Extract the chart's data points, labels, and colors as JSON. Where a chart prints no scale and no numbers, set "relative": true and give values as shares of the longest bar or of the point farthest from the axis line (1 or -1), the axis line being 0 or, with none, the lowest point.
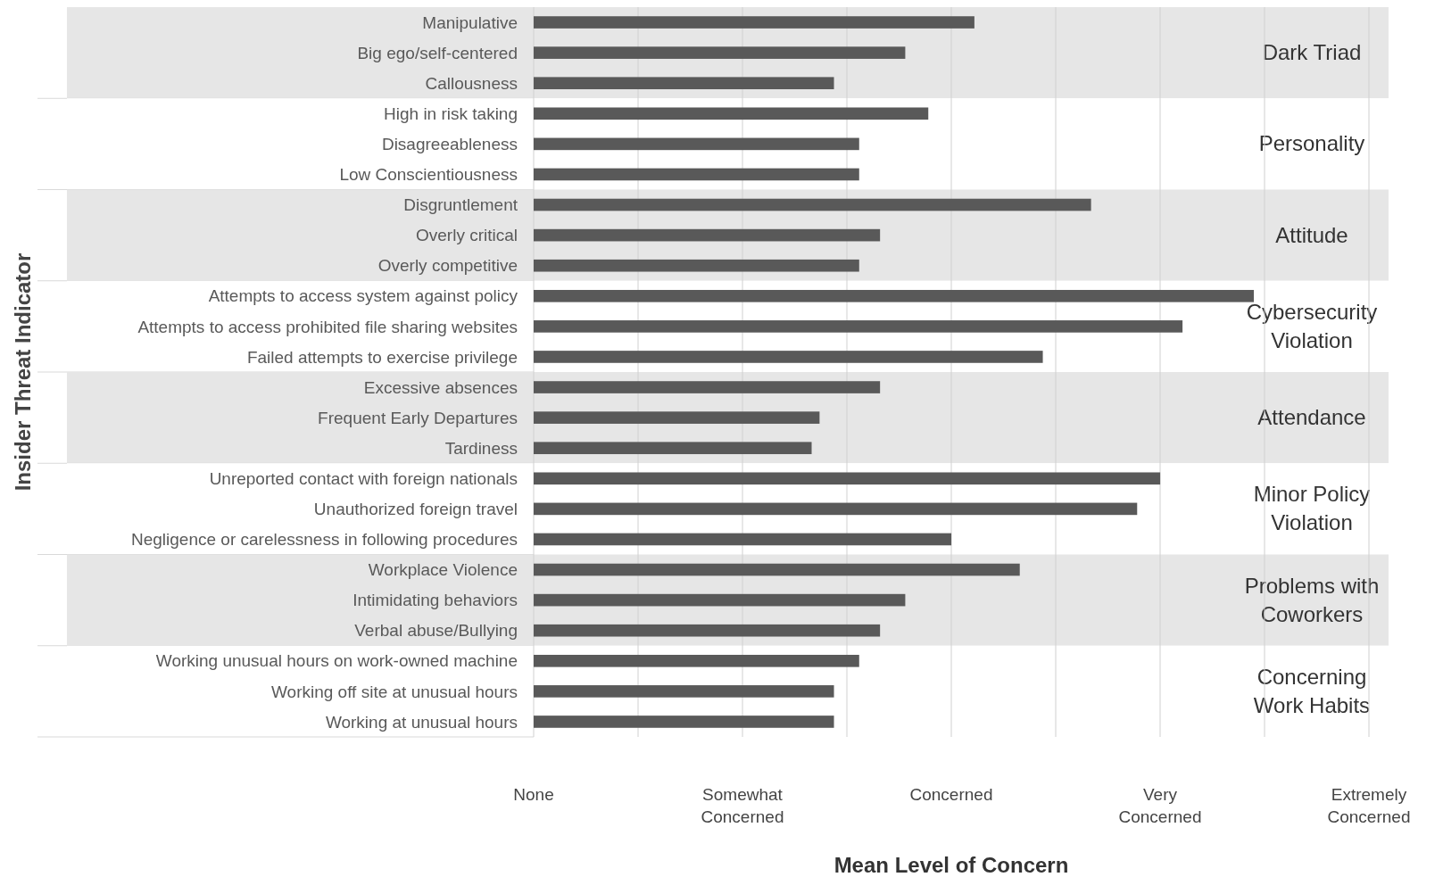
{
  "chart_data": {
    "type": "bar",
    "orientation": "horizontal",
    "ylabel": "Insider Threat Indicator",
    "categories": [
      "Manipulative",
      "Big ego/self-centered",
      "Callousness",
      "High in risk taking",
      "Disagreeableness",
      "Low Conscientiousness",
      "Disgruntlement",
      "Overly critical",
      "Overly competitive",
      "Attempts to access system against policy",
      "Attempts to access prohibited file sharing websites",
      "Failed attempts to exercise privilege",
      "Excessive absences",
      "Frequent Early Departures",
      "Tardiness",
      "Unreported contact with foreign nationals",
      "Unauthorized foreign travel",
      "Negligence or carelessness in following procedures",
      "Workplace Violence",
      "Intimidating behaviors",
      "Verbal abuse/Bullying",
      "Working unusual hours on work-owned machine",
      "Working off site at unusual hours",
      "Working at unusual hours"
    ],
    "values": [
      0.612,
      0.516,
      0.417,
      0.548,
      0.452,
      0.452,
      0.774,
      0.481,
      0.452,
      1,
      0.901,
      0.707,
      0.481,
      0.397,
      0.386,
      0.87,
      0.838,
      0.58,
      0.675,
      0.516,
      0.481,
      0.452,
      0.417,
      0.417
    ],
    "relative": true,
    "color": "#595959",
    "annotations": [
      "None",
      "Somewhat Concerned",
      "Concerned",
      "Very Concerned",
      "Extremely Concerned",
      "Mean Level of Concern"
    ],
    "grid": true,
    "bands": [
      {
        "axis": "y",
        "from": "Manipulative",
        "to": "Callousness",
        "label": "Dark Triad",
        "color": "#e6e6e6"
      },
      {
        "axis": "y",
        "from": "High in risk taking",
        "to": "Low Conscientiousness",
        "label": "Personality",
        "color": "#ffffff"
      },
      {
        "axis": "y",
        "from": "Disgruntlement",
        "to": "Overly competitive",
        "label": "Attitude",
        "color": "#e6e6e6"
      },
      {
        "axis": "y",
        "from": "Attempts to access system against policy",
        "to": "Failed attempts to exercise privilege",
        "label": "Cybersecurity Violation",
        "color": "#ffffff"
      },
      {
        "axis": "y",
        "from": "Excessive absences",
        "to": "Tardiness",
        "label": "Attendance",
        "color": "#e6e6e6"
      },
      {
        "axis": "y",
        "from": "Unreported contact with foreign nationals",
        "to": "Negligence or carelessness in following procedures",
        "label": "Minor Policy Violation",
        "color": "#ffffff"
      },
      {
        "axis": "y",
        "from": "Workplace Violence",
        "to": "Verbal abuse/Bullying",
        "label": "Problems with Coworkers",
        "color": "#e6e6e6"
      },
      {
        "axis": "y",
        "from": "Working unusual hours on work-owned machine",
        "to": "Working at unusual hours",
        "label": "Concerning Work Habits",
        "color": "#ffffff"
      }
    ]
  }
}
